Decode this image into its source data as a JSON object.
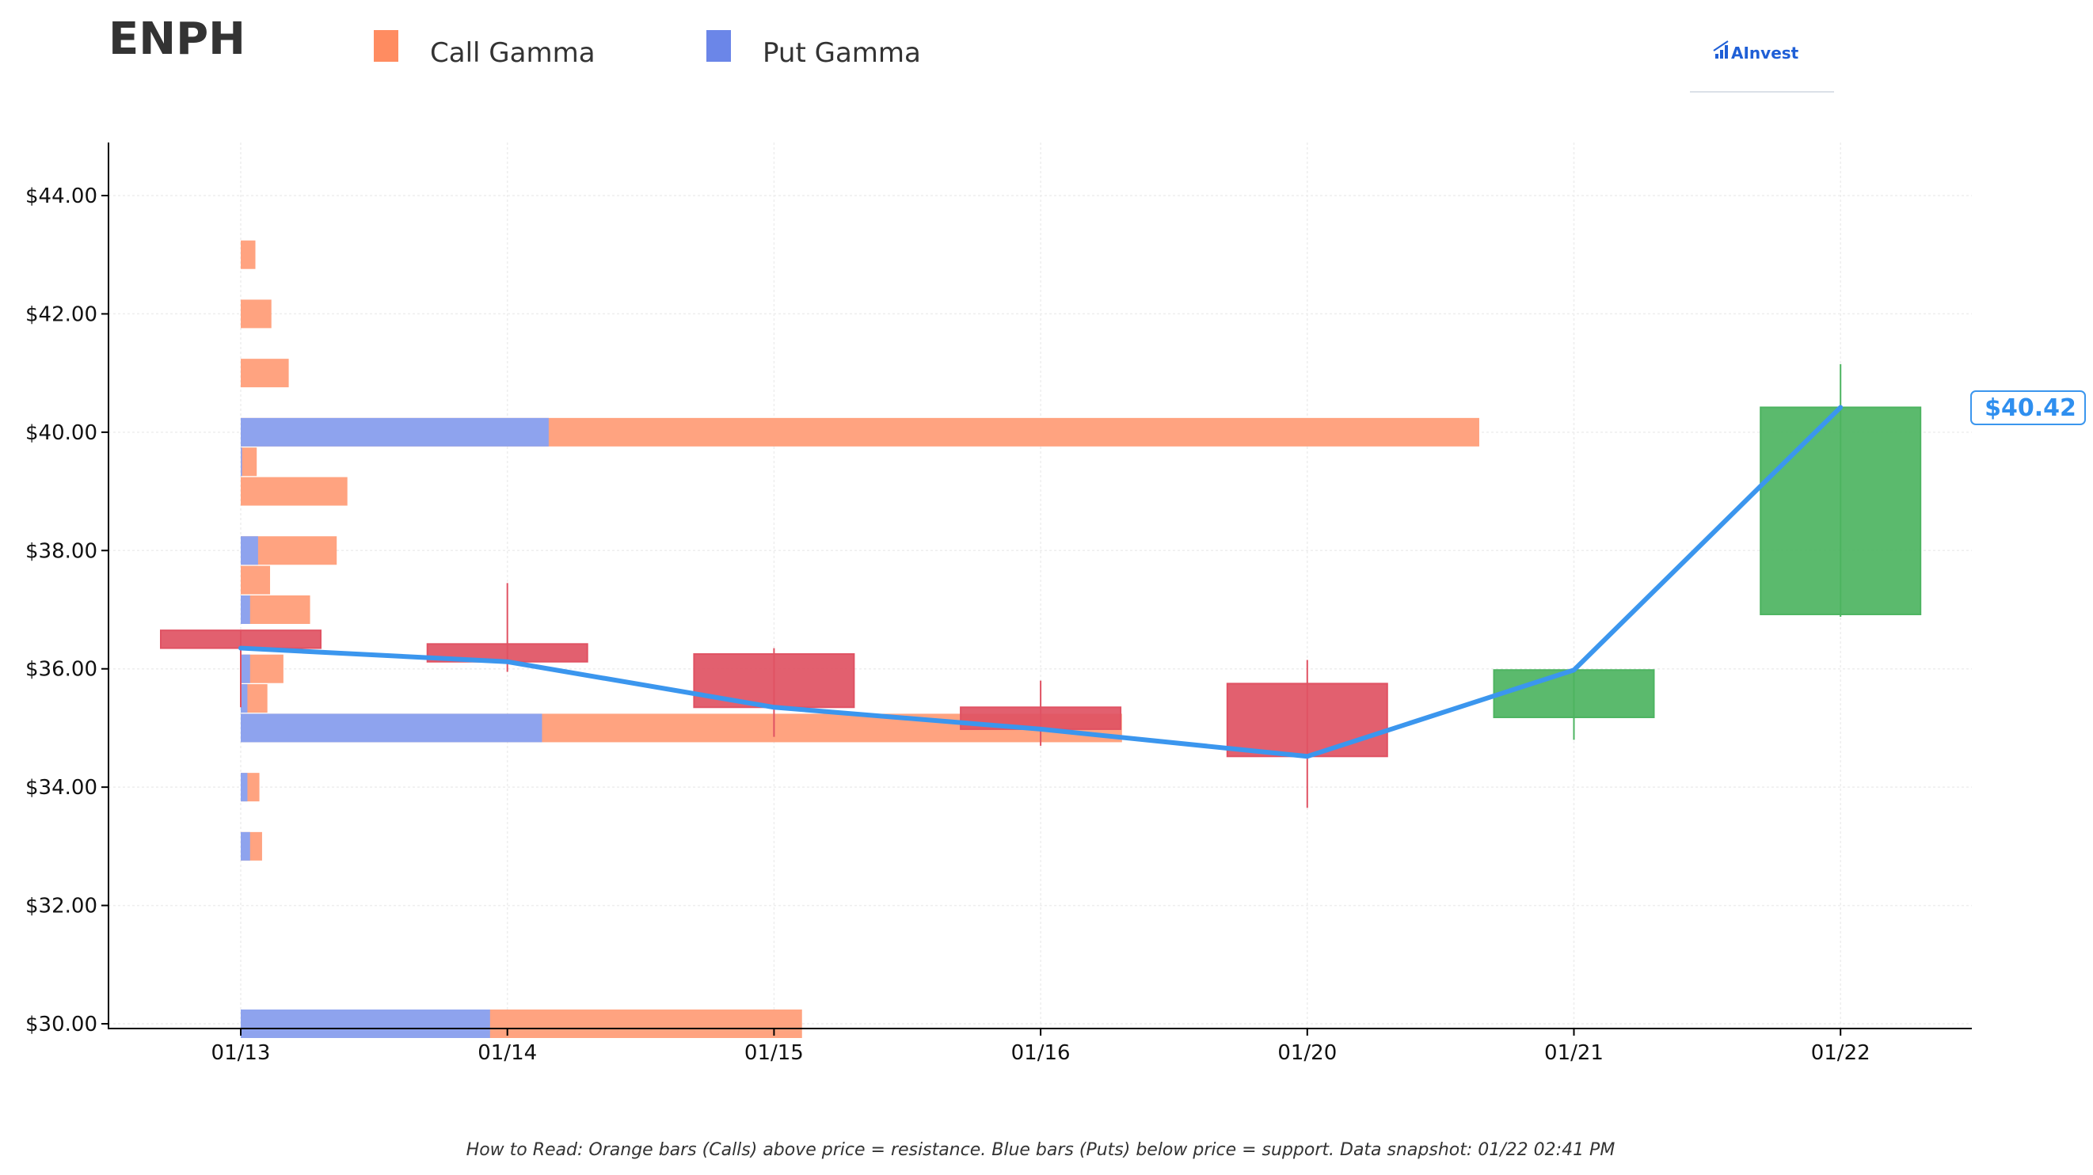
{
  "header": {
    "title": "ENPH"
  },
  "legend": {
    "items": [
      {
        "label": "Call Gamma",
        "color": "#ff8c61"
      },
      {
        "label": "Put Gamma",
        "color": "#6b86e8"
      }
    ]
  },
  "logo": {
    "text": "AInvest",
    "icon": "chart-bars-logo-icon"
  },
  "footnote": "How to Read: Orange bars (Calls) above price = resistance. Blue bars (Puts) below price = support. Data snapshot: 01/22 02:41 PM",
  "price_tag": "$40.42",
  "colors": {
    "call": "#ffa380",
    "put": "#8ea3ee",
    "down": "#e05263",
    "up": "#4db461",
    "line": "#3b96ee"
  },
  "chart_data": {
    "type": "candlestick",
    "categories": [
      "01/13",
      "01/14",
      "01/15",
      "01/16",
      "01/20",
      "01/21",
      "01/22"
    ],
    "y_ticks": [
      "$30.00",
      "$32.00",
      "$34.00",
      "$36.00",
      "$38.00",
      "$40.00",
      "$42.00",
      "$44.00"
    ],
    "ylim": [
      29.9,
      44.9
    ],
    "grid": true,
    "legend_position": "top",
    "candles": [
      {
        "date": "01/13",
        "open": 36.65,
        "high": 36.65,
        "low": 35.35,
        "close": 36.35
      },
      {
        "date": "01/14",
        "open": 36.42,
        "high": 37.45,
        "low": 35.95,
        "close": 36.12
      },
      {
        "date": "01/15",
        "open": 36.25,
        "high": 36.35,
        "low": 34.85,
        "close": 35.35
      },
      {
        "date": "01/16",
        "open": 35.35,
        "high": 35.8,
        "low": 34.7,
        "close": 34.98
      },
      {
        "date": "01/20",
        "open": 35.75,
        "high": 36.15,
        "low": 33.65,
        "close": 34.52
      },
      {
        "date": "01/21",
        "open": 35.18,
        "high": 35.98,
        "low": 34.8,
        "close": 35.98
      },
      {
        "date": "01/22",
        "open": 36.92,
        "high": 41.15,
        "low": 36.88,
        "close": 40.42
      }
    ],
    "close_line": [
      36.35,
      36.12,
      35.35,
      34.98,
      34.52,
      35.98,
      40.42
    ],
    "gamma_bars": [
      {
        "strike": 43.0,
        "call": 0.055,
        "put": 0.0
      },
      {
        "strike": 42.0,
        "call": 0.115,
        "put": 0.0
      },
      {
        "strike": 41.0,
        "call": 0.18,
        "put": 0.0
      },
      {
        "strike": 40.0,
        "call": 3.49,
        "put": 1.155
      },
      {
        "strike": 39.5,
        "call": 0.055,
        "put": 0.005
      },
      {
        "strike": 39.0,
        "call": 0.4,
        "put": 0.0
      },
      {
        "strike": 38.0,
        "call": 0.295,
        "put": 0.065
      },
      {
        "strike": 37.5,
        "call": 0.11,
        "put": 0.0
      },
      {
        "strike": 37.0,
        "call": 0.225,
        "put": 0.035
      },
      {
        "strike": 36.0,
        "call": 0.125,
        "put": 0.035
      },
      {
        "strike": 35.5,
        "call": 0.075,
        "put": 0.025
      },
      {
        "strike": 35.0,
        "call": 2.175,
        "put": 1.13
      },
      {
        "strike": 34.0,
        "call": 0.045,
        "put": 0.025
      },
      {
        "strike": 33.0,
        "call": 0.045,
        "put": 0.035
      },
      {
        "strike": 30.0,
        "call": 1.17,
        "put": 0.935
      }
    ]
  }
}
